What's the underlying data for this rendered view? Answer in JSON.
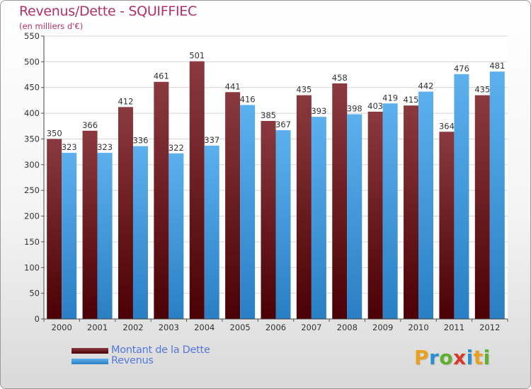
{
  "chart_data": {
    "type": "bar",
    "title": "Revenus/Dette - SQUIFFIEC",
    "subtitle": "(en milliers d'€)",
    "categories": [
      "2000",
      "2001",
      "2002",
      "2003",
      "2004",
      "2005",
      "2006",
      "2007",
      "2008",
      "2009",
      "2010",
      "2011",
      "2012"
    ],
    "series": [
      {
        "name": "Montant de la Dette",
        "values": [
          350,
          366,
          412,
          461,
          501,
          441,
          385,
          435,
          458,
          403,
          415,
          364,
          435
        ],
        "color": "#6b1a1e"
      },
      {
        "name": "Revenus",
        "values": [
          323,
          323,
          336,
          322,
          337,
          416,
          367,
          393,
          398,
          419,
          442,
          476,
          481
        ],
        "color": "#4aa3e6"
      }
    ],
    "ylim": [
      0,
      550
    ],
    "yticks": [
      0,
      50,
      100,
      150,
      200,
      250,
      300,
      350,
      400,
      450,
      500,
      550
    ],
    "grid": true,
    "legend": "bottom-left"
  },
  "brand": {
    "letters": [
      "P",
      "r",
      "o",
      "x",
      "i",
      "t",
      "i"
    ],
    "colors": [
      "#e8a020",
      "#2a8fd0",
      "#60b030",
      "#d83a2a",
      "#2a8fd0",
      "#e8a020",
      "#60b030"
    ]
  }
}
